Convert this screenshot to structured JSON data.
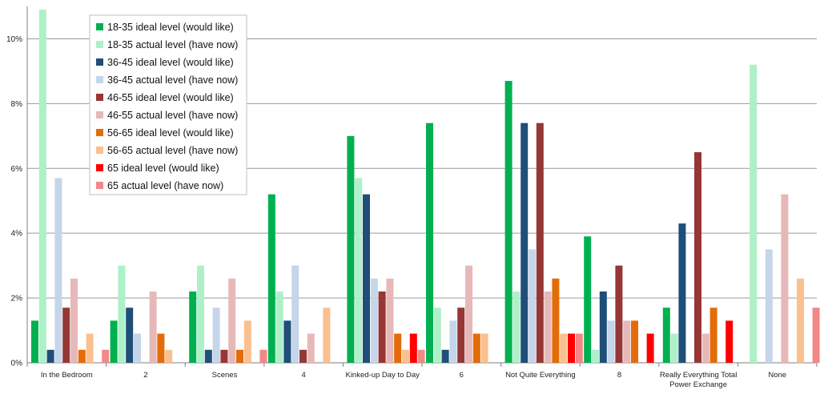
{
  "chart_data": {
    "type": "bar",
    "title": "",
    "xlabel": "",
    "ylabel": "",
    "ylim": [
      0,
      11
    ],
    "yticks": [
      0,
      2,
      4,
      6,
      8,
      10
    ],
    "ytick_labels": [
      "0%",
      "2%",
      "4%",
      "6%",
      "8%",
      "10%"
    ],
    "grid": true,
    "legend_position": "top-left",
    "categories": [
      [
        "In the Bedroom"
      ],
      [
        "2"
      ],
      [
        "Scenes"
      ],
      [
        "4"
      ],
      [
        "Kinked-up Day to Day"
      ],
      [
        "6"
      ],
      [
        "Not Quite Everything"
      ],
      [
        "8"
      ],
      [
        "Really Everything Total",
        "Power Exchange"
      ],
      [
        "None"
      ]
    ],
    "series": [
      {
        "name": "18-35 ideal level (would like)",
        "color": "#00b050",
        "values": [
          1.3,
          1.3,
          2.2,
          5.2,
          7.0,
          7.4,
          8.7,
          3.9,
          1.7,
          0
        ]
      },
      {
        "name": "18-35 actual level (have now)",
        "color": "#aef0c8",
        "values": [
          10.9,
          3.0,
          3.0,
          2.2,
          5.7,
          1.7,
          2.2,
          0.4,
          0.9,
          9.2
        ]
      },
      {
        "name": "36-45 ideal level (would like)",
        "color": "#1f4e79",
        "values": [
          0.4,
          1.7,
          0.4,
          1.3,
          5.2,
          0.4,
          7.4,
          2.2,
          4.3,
          0
        ]
      },
      {
        "name": "36-45 actual level (have now)",
        "color": "#c5d5ea",
        "values": [
          5.7,
          0.9,
          1.7,
          3.0,
          2.6,
          1.3,
          3.5,
          1.3,
          0,
          3.5
        ]
      },
      {
        "name": "46-55 ideal level (would like)",
        "color": "#953735",
        "values": [
          1.7,
          0,
          0.4,
          0.4,
          2.2,
          1.7,
          7.4,
          3.0,
          6.5,
          0
        ]
      },
      {
        "name": "46-55 actual level (have now)",
        "color": "#e6b9b8",
        "values": [
          2.6,
          2.2,
          2.6,
          0.9,
          2.6,
          3.0,
          2.2,
          1.3,
          0.9,
          5.2
        ]
      },
      {
        "name": "56-65 ideal level (would like)",
        "color": "#e36c09",
        "values": [
          0.4,
          0.9,
          0.4,
          0,
          0.9,
          0.9,
          2.6,
          1.3,
          1.7,
          0
        ]
      },
      {
        "name": "56-65 actual level (have now)",
        "color": "#fac090",
        "values": [
          0.9,
          0.4,
          1.3,
          1.7,
          0.4,
          0.9,
          0.9,
          0,
          0,
          2.6
        ]
      },
      {
        "name": "65 ideal level (would like)",
        "color": "#ff0000",
        "values": [
          0,
          0,
          0,
          0,
          0.9,
          0,
          0.9,
          0.9,
          1.3,
          0
        ]
      },
      {
        "name": "65 actual level (have now)",
        "color": "#f28888",
        "values": [
          0.4,
          0,
          0.4,
          0,
          0.4,
          0,
          0.9,
          0,
          0,
          1.7
        ]
      }
    ]
  }
}
